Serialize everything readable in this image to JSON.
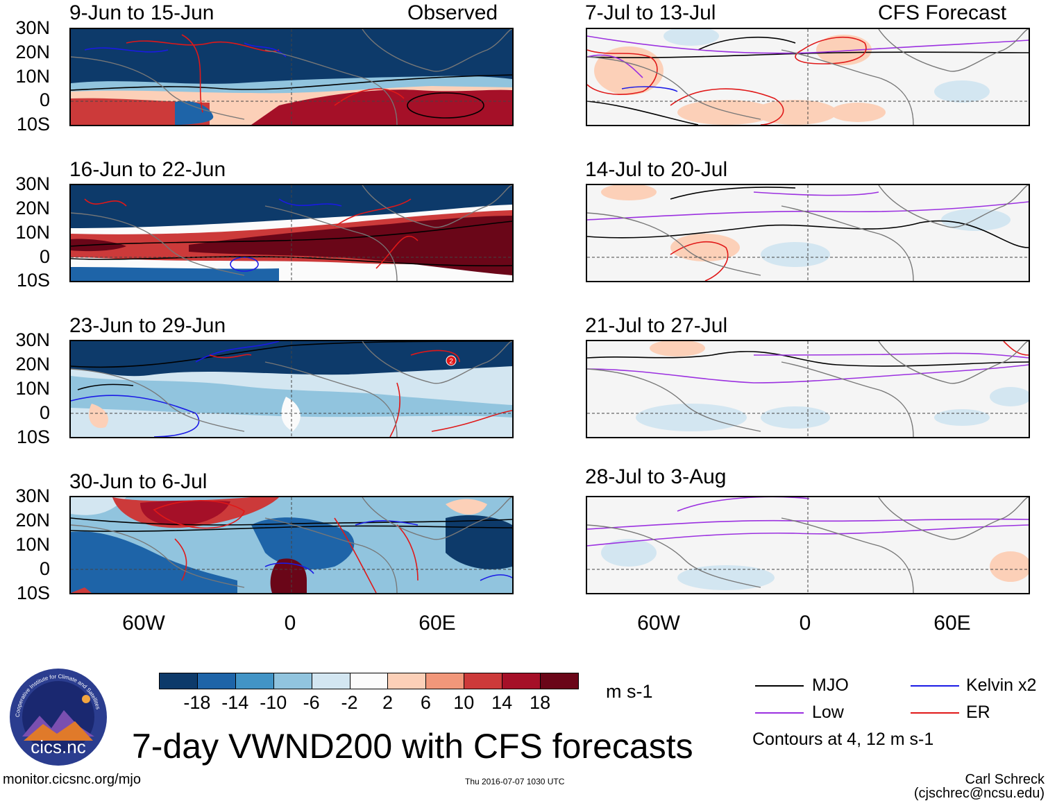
{
  "figure_title": "7-day VWND200 with CFS forecasts",
  "column_labels": {
    "left": "Observed",
    "right": "CFS Forecast"
  },
  "observed_periods": [
    "9-Jun to 15-Jun",
    "16-Jun to 22-Jun",
    "23-Jun to 29-Jun",
    "30-Jun to 6-Jul"
  ],
  "forecast_periods": [
    "7-Jul to 13-Jul",
    "14-Jul to 20-Jul",
    "21-Jul to 27-Jul",
    "28-Jul to 3-Aug"
  ],
  "lat_ticks": [
    "30N",
    "20N",
    "10N",
    "0",
    "10S"
  ],
  "lon_ticks": [
    "60W",
    "0",
    "60E"
  ],
  "storm_marker": "2",
  "colorbar": {
    "unit": "m s-1",
    "labels": [
      "-18",
      "-14",
      "-10",
      "-6",
      "-2",
      "2",
      "6",
      "10",
      "14",
      "18"
    ],
    "colors": [
      "#0d3a6a",
      "#1e64a8",
      "#4294c6",
      "#91c4de",
      "#d3e6f1",
      "#fbfbfb",
      "#fcd0b8",
      "#f1977a",
      "#cc3a3a",
      "#a51028",
      "#6a0618"
    ]
  },
  "legend": {
    "items": [
      {
        "label": "MJO",
        "color": "#000000"
      },
      {
        "label": "Kelvin x2",
        "color": "#1a1ae6"
      },
      {
        "label": "Low",
        "color": "#9b30e0"
      },
      {
        "label": "ER",
        "color": "#e01818"
      }
    ],
    "note": "Contours at 4, 12 m s-1"
  },
  "footer": {
    "url": "monitor.cicsnc.org/mjo",
    "timestamp": "Thu 2016-07-07 1030 UTC",
    "credit": "Carl Schreck (cjschrec@ncsu.edu)"
  },
  "logo": {
    "text": "cics.nc",
    "ring_text": "Cooperative Institute for Climate and Satellites"
  }
}
